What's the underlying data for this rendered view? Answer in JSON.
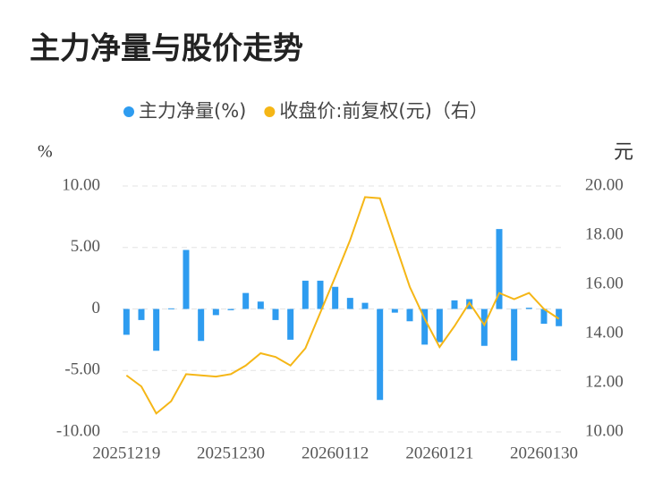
{
  "chart_data": {
    "type": "bar_line",
    "title": "主力净量与股价走势",
    "y_unit": "%",
    "y2_unit": "元",
    "categories": [
      "20251219",
      null,
      null,
      null,
      null,
      null,
      null,
      "20251230",
      null,
      null,
      null,
      null,
      null,
      null,
      "20260112",
      null,
      null,
      null,
      null,
      null,
      null,
      "20260121",
      null,
      null,
      null,
      null,
      null,
      null,
      "20260130",
      null
    ],
    "series": [
      {
        "name": "主力净量(%)",
        "color": "#2e9cf0",
        "type": "bar",
        "axis": "y",
        "values": [
          -2.1,
          -0.9,
          -3.4,
          0.05,
          4.8,
          -2.6,
          -0.5,
          -0.1,
          1.3,
          0.6,
          -0.9,
          -2.5,
          2.3,
          2.3,
          1.8,
          0.9,
          0.5,
          -7.4,
          -0.3,
          -1.0,
          -2.9,
          -2.7,
          0.7,
          0.8,
          -3.0,
          6.5,
          -4.2,
          0.1,
          -1.2,
          -1.4
        ]
      },
      {
        "name": "收盘价:前复权(元)（右）",
        "color": "#f5b616",
        "type": "line",
        "axis": "y2",
        "values": [
          12.3,
          11.85,
          10.75,
          11.25,
          12.35,
          12.3,
          12.25,
          12.35,
          12.7,
          13.2,
          13.05,
          12.7,
          13.4,
          14.85,
          16.3,
          17.8,
          19.55,
          19.5,
          17.7,
          15.9,
          14.6,
          13.45,
          14.3,
          15.25,
          14.35,
          15.65,
          15.4,
          15.65,
          15.0,
          14.6
        ]
      }
    ],
    "ylim": [
      -10,
      10
    ],
    "yticks": [
      {
        "value": -10,
        "label": "-10.00"
      },
      {
        "value": -5,
        "label": "-5.00"
      },
      0,
      {
        "value": 5,
        "label": "5.00"
      },
      {
        "value": 10,
        "label": "10.00"
      }
    ],
    "y2lim": [
      10,
      20
    ],
    "y2ticks": [
      {
        "value": 10,
        "label": "10.00"
      },
      {
        "value": 12,
        "label": "12.00"
      },
      {
        "value": 14,
        "label": "14.00"
      },
      {
        "value": 16,
        "label": "16.00"
      },
      {
        "value": 18,
        "label": "18.00"
      },
      {
        "value": 20,
        "label": "20.00"
      }
    ],
    "grid": true,
    "legend": "top"
  }
}
